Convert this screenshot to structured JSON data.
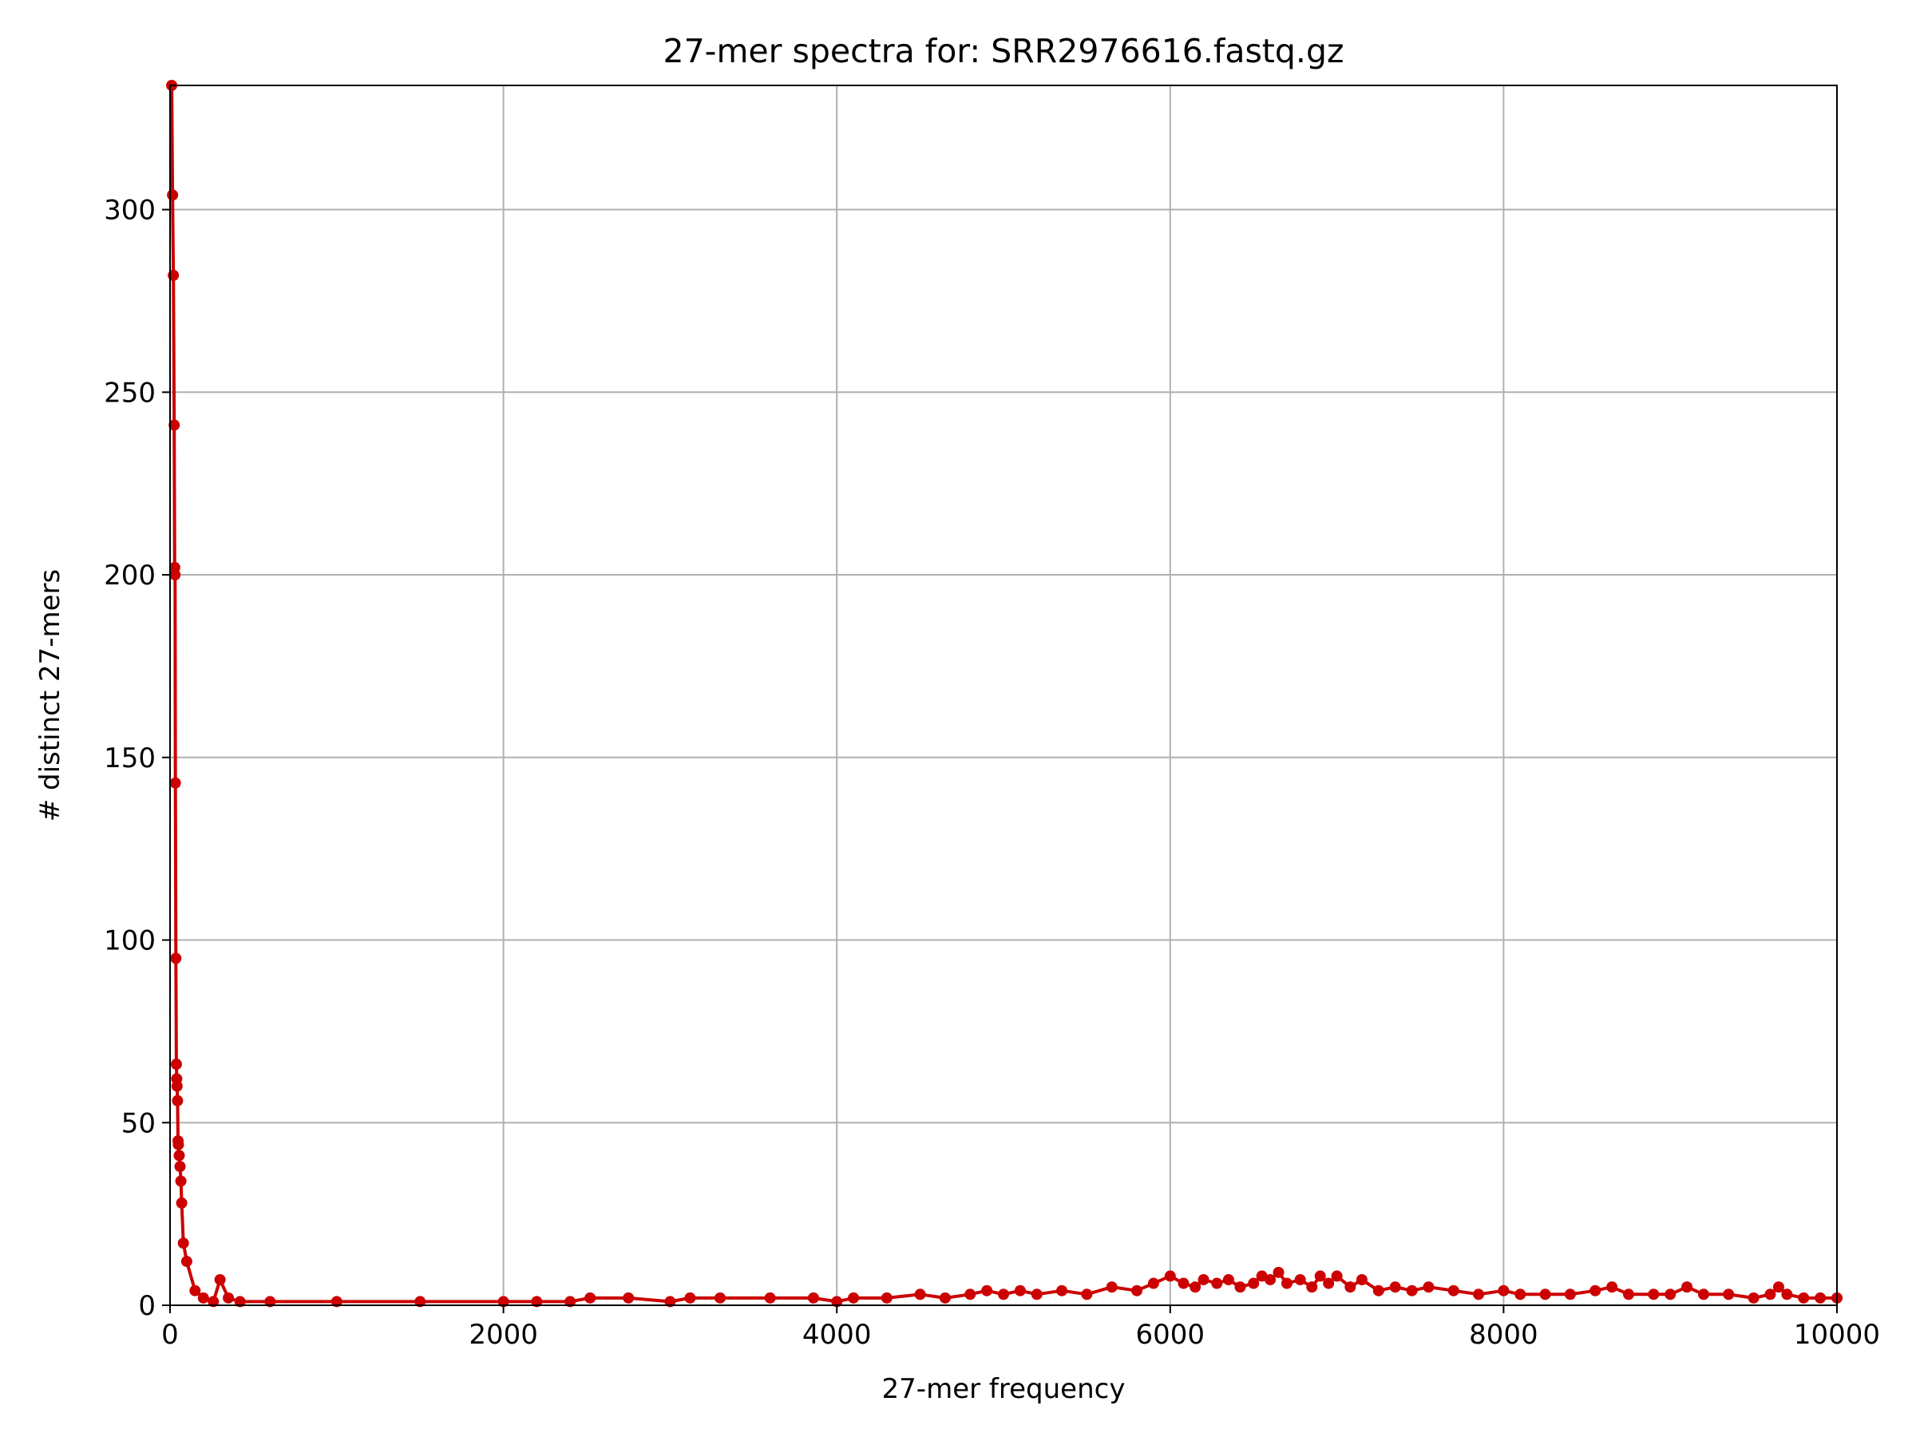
{
  "chart_data": {
    "type": "line",
    "title": "27-mer spectra for: SRR2976616.fastq.gz",
    "xlabel": "27-mer frequency",
    "ylabel": "# distinct 27-mers",
    "xlim": [
      0,
      10000
    ],
    "ylim": [
      0,
      334
    ],
    "x_ticks": [
      0,
      2000,
      4000,
      6000,
      8000,
      10000
    ],
    "x_tick_labels": [
      "0",
      "2000",
      "4000",
      "6000",
      "8000",
      "10000"
    ],
    "y_ticks": [
      0,
      50,
      100,
      150,
      200,
      250,
      300
    ],
    "y_tick_labels": [
      "0",
      "50",
      "100",
      "150",
      "200",
      "250",
      "300"
    ],
    "grid": true,
    "legend": "none",
    "series_color": "#cc0000",
    "series": [
      {
        "x": [
          10,
          15,
          20,
          25,
          28,
          30,
          32,
          35,
          38,
          40,
          42,
          45,
          48,
          50,
          55,
          60,
          65,
          70,
          80,
          100,
          150,
          200,
          260,
          300,
          350,
          420,
          600,
          1000,
          1500,
          2000,
          2200,
          2400,
          2520,
          2750,
          3000,
          3120,
          3300,
          3600,
          3860,
          4000,
          4100,
          4300,
          4500,
          4650,
          4800,
          4900,
          5000,
          5100,
          5200,
          5350,
          5500,
          5650,
          5800,
          5900,
          6000,
          6080,
          6150,
          6200,
          6280,
          6350,
          6420,
          6500,
          6550,
          6600,
          6650,
          6700,
          6780,
          6850,
          6900,
          6950,
          7000,
          7080,
          7150,
          7250,
          7350,
          7450,
          7550,
          7700,
          7850,
          8000,
          8100,
          8250,
          8400,
          8550,
          8650,
          8750,
          8900,
          9000,
          9100,
          9200,
          9350,
          9500,
          9600,
          9650,
          9700,
          9800,
          9900,
          10000
        ],
        "y": [
          334,
          304,
          282,
          241,
          202,
          200,
          143,
          95,
          66,
          62,
          60,
          56,
          45,
          44,
          41,
          38,
          34,
          28,
          17,
          12,
          4,
          2,
          1,
          7,
          2,
          1,
          1,
          1,
          1,
          1,
          1,
          1,
          2,
          2,
          1,
          2,
          2,
          2,
          2,
          1,
          2,
          2,
          3,
          2,
          3,
          4,
          3,
          4,
          3,
          4,
          3,
          5,
          4,
          6,
          8,
          6,
          5,
          7,
          6,
          7,
          5,
          6,
          8,
          7,
          9,
          6,
          7,
          5,
          8,
          6,
          8,
          5,
          7,
          4,
          5,
          4,
          5,
          4,
          3,
          4,
          3,
          3,
          3,
          4,
          5,
          3,
          3,
          3,
          5,
          3,
          3,
          2,
          3,
          5,
          3,
          2,
          2,
          2
        ]
      }
    ]
  }
}
